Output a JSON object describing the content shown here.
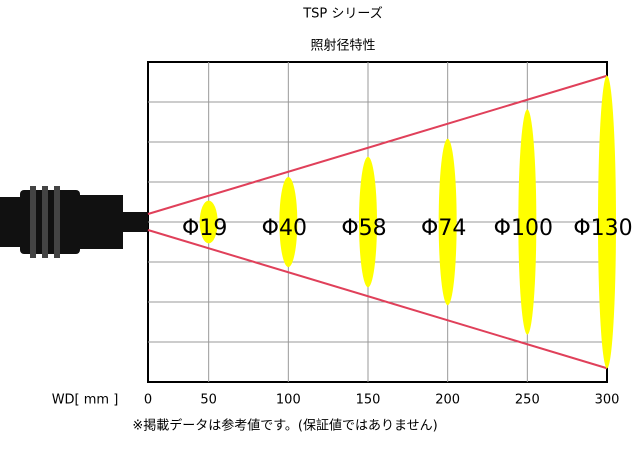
{
  "chart_data": {
    "type": "beam",
    "title": "TSP シリーズ",
    "subtitle": "照射径特性",
    "x_label": "WD[ mm ]",
    "note": "※掲載データは参考値です。(保証値ではありません)",
    "x": [
      50,
      100,
      150,
      200,
      250,
      300
    ],
    "values": [
      19,
      40,
      58,
      74,
      100,
      130
    ],
    "value_labels": [
      "Φ19",
      "Φ40",
      "Φ58",
      "Φ74",
      "Φ100",
      "Φ130"
    ],
    "color": "#ffff00",
    "line_color": "#e0405a",
    "xlim": [
      0,
      300
    ],
    "xticks": [
      0,
      50,
      100,
      150,
      200,
      250,
      300
    ],
    "grid": true
  }
}
